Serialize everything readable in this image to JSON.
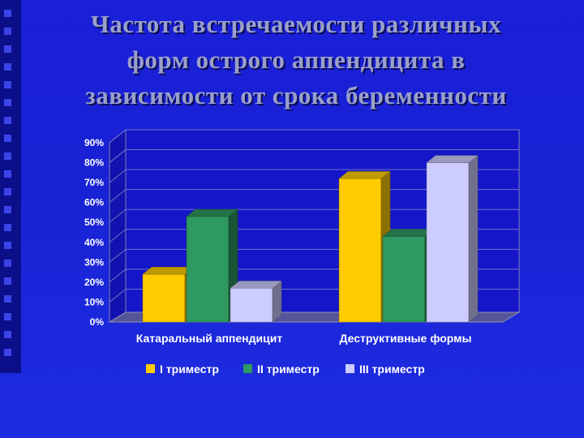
{
  "title_lines": [
    "Частота встречаемости различных",
    "форм острого аппендицита в",
    "зависимости от срока беременности"
  ],
  "chart_data": {
    "type": "bar",
    "title": "Частота встречаемости различных форм острого аппендицита в зависимости от срока беременности",
    "categories": [
      "Катаральный аппендицит",
      "Деструктивные формы"
    ],
    "series": [
      {
        "name": "I триместр",
        "values": [
          24,
          72
        ],
        "color": "#ffcc00"
      },
      {
        "name": "II триместр",
        "values": [
          53,
          43
        ],
        "color": "#2e9960"
      },
      {
        "name": "III триместр",
        "values": [
          17,
          80
        ],
        "color": "#ccccff"
      }
    ],
    "yticks": [
      "0%",
      "10%",
      "20%",
      "30%",
      "40%",
      "50%",
      "60%",
      "70%",
      "80%",
      "90%"
    ],
    "ylim": [
      0,
      90
    ],
    "grid": true,
    "legend": "bottom",
    "three_d": true
  }
}
